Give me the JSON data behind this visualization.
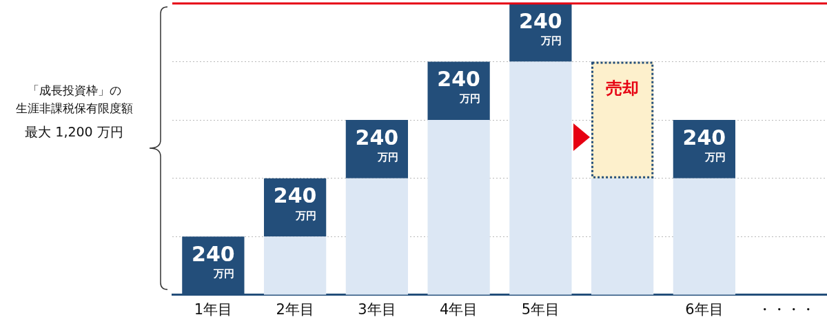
{
  "chart_data": {
    "type": "bar",
    "stacked": true,
    "annotations": [
      "「成長投資枠」の",
      "生涯非課税保有限度額",
      "最大 1,200 万円"
    ],
    "categories": [
      "1年目",
      "2年目",
      "3年目",
      "4年目",
      "5年目",
      null,
      "6年目",
      "・・・・"
    ],
    "series": [
      {
        "color": "#dce7f4",
        "values": [
          0,
          240,
          480,
          720,
          960,
          480,
          480,
          null
        ]
      },
      {
        "color": "#234e7a",
        "values": [
          240,
          240,
          240,
          240,
          240,
          null,
          240,
          null
        ],
        "value_labels": [
          "240\n万円",
          "240\n万円",
          "240\n万円",
          "240\n万円",
          "240\n万円",
          null,
          "240\n万円",
          null
        ]
      },
      {
        "color": "#fdf0cc",
        "line_style": "dotted",
        "values": [
          null,
          null,
          null,
          null,
          null,
          480,
          null,
          null
        ],
        "value_labels": [
          null,
          null,
          null,
          null,
          null,
          "売却",
          null,
          null
        ]
      }
    ],
    "ylim": [
      0,
      1200
    ],
    "yticks": [
      {
        "value": 240,
        "label": null
      },
      {
        "value": 480,
        "label": null
      },
      {
        "value": 720,
        "label": null
      },
      {
        "value": 960,
        "label": null
      }
    ],
    "tick_labels": "x",
    "grid": "y",
    "legend": false,
    "ref_lines": [
      {
        "axis": "y",
        "value": 1200,
        "color": "#e60012"
      }
    ]
  }
}
